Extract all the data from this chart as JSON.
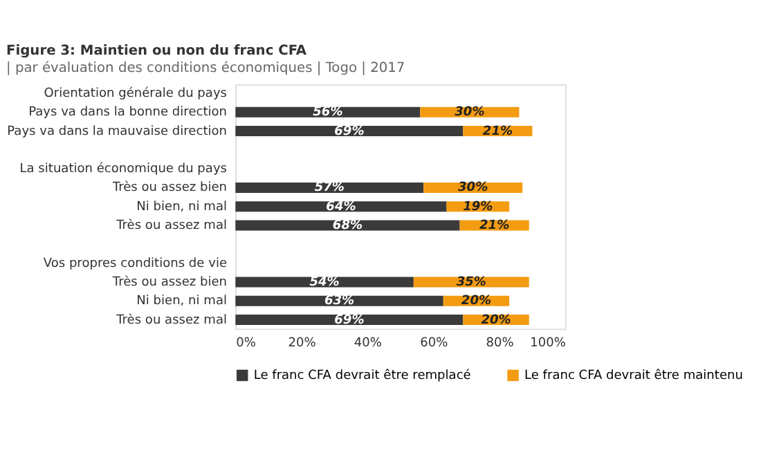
{
  "chart_data": {
    "type": "bar",
    "orientation": "horizontal",
    "stacked": true,
    "title": "Figure 3: Maintien ou non du franc CFA",
    "subtitle": "| par évaluation des conditions économiques | Togo | 2017",
    "categories": [
      "Orientation générale du pays",
      "Pays va dans la bonne direction",
      "Pays va dans la mauvaise direction",
      null,
      "La situation économique du pays",
      "Très ou assez bien",
      "Ni bien, ni mal",
      "Très ou assez mal",
      null,
      "Vos propres conditions de vie",
      "Très ou assez bien",
      "Ni bien, ni mal",
      "Très ou assez mal"
    ],
    "series": [
      {
        "name": "Le franc CFA devrait être remplacé",
        "color": "#3a3a3a",
        "values": [
          null,
          56,
          69,
          null,
          null,
          57,
          64,
          68,
          null,
          null,
          54,
          63,
          69
        ],
        "value_labels": [
          null,
          "56%",
          "69%",
          null,
          null,
          "57%",
          "64%",
          "68%",
          null,
          null,
          "54%",
          "63%",
          "69%"
        ]
      },
      {
        "name": "Le franc CFA devrait être maintenu",
        "color": "#f39c12",
        "values": [
          null,
          30,
          21,
          null,
          null,
          30,
          19,
          21,
          null,
          null,
          35,
          20,
          20
        ],
        "value_labels": [
          null,
          "30%",
          "21%",
          null,
          null,
          "30%",
          "19%",
          "21%",
          null,
          null,
          "35%",
          "20%",
          "20%"
        ]
      }
    ],
    "xlim": [
      0,
      100
    ],
    "xticks": [
      {
        "value": 0,
        "label": "0%"
      },
      {
        "value": 20,
        "label": "20%"
      },
      {
        "value": 40,
        "label": "40%"
      },
      {
        "value": 60,
        "label": "60%"
      },
      {
        "value": 80,
        "label": "80%"
      },
      {
        "value": 100,
        "label": "100%"
      }
    ],
    "legend": "bottom"
  }
}
